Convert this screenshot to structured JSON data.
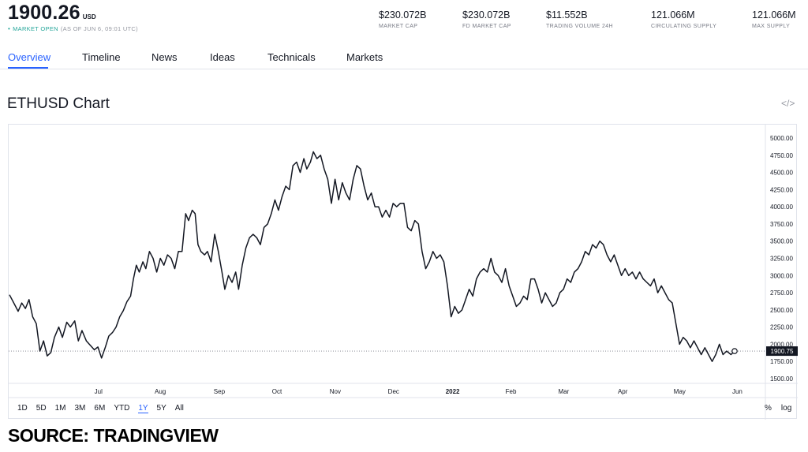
{
  "header": {
    "price": "1900.26",
    "currency": "USD",
    "status_dot": "•",
    "status": "MARKET OPEN",
    "as_of": "(AS OF JUN 6, 09:01 UTC)"
  },
  "stats": [
    {
      "value": "$230.072B",
      "label": "MARKET CAP"
    },
    {
      "value": "$230.072B",
      "label": "FD MARKET CAP"
    },
    {
      "value": "$11.552B",
      "label": "TRADING VOLUME 24H"
    },
    {
      "value": "121.066M",
      "label": "CIRCULATING SUPPLY"
    },
    {
      "value": "121.066M",
      "label": "MAX SUPPLY"
    }
  ],
  "tabs": [
    "Overview",
    "Timeline",
    "News",
    "Ideas",
    "Technicals",
    "Markets"
  ],
  "chart_title": "ETHUSD Chart",
  "embed_icon": "</>",
  "ranges": [
    "1D",
    "5D",
    "1M",
    "3M",
    "6M",
    "YTD",
    "1Y",
    "5Y",
    "All"
  ],
  "active_range": "1Y",
  "right_controls": [
    "%",
    "log"
  ],
  "source": "SOURCE: TRADINGVIEW",
  "colors": {
    "accent": "#2962ff",
    "market_open": "#26a69a",
    "line": "#131722",
    "last_price_label_bg": "#131722"
  },
  "chart_data": {
    "type": "line",
    "title": "ETHUSD Chart",
    "symbol": "ETHUSD",
    "xlabel": "",
    "ylabel": "",
    "ylim": [
      1500,
      5000
    ],
    "y_ticks": [
      "5000.00",
      "4750.00",
      "4500.00",
      "4250.00",
      "4000.00",
      "3750.00",
      "3500.00",
      "3250.00",
      "3000.00",
      "2750.00",
      "2500.00",
      "2250.00",
      "2000.00",
      "1750.00",
      "1500.00"
    ],
    "x_ticks": [
      {
        "label": "Jul",
        "t": 0.06
      },
      {
        "label": "Aug",
        "t": 0.149
      },
      {
        "label": "Sep",
        "t": 0.234
      },
      {
        "label": "Oct",
        "t": 0.317
      },
      {
        "label": "Nov",
        "t": 0.401
      },
      {
        "label": "Dec",
        "t": 0.485
      },
      {
        "label": "2022",
        "t": 0.57
      },
      {
        "label": "Feb",
        "t": 0.654
      },
      {
        "label": "Mar",
        "t": 0.73
      },
      {
        "label": "Apr",
        "t": 0.815
      },
      {
        "label": "May",
        "t": 0.897
      },
      {
        "label": "Jun",
        "t": 0.98
      }
    ],
    "last_price": "1900.75",
    "last_value": 1900.75,
    "series": [
      {
        "name": "ETHUSD",
        "points": [
          [
            0.0,
            2720
          ],
          [
            0.006,
            2600
          ],
          [
            0.012,
            2480
          ],
          [
            0.017,
            2600
          ],
          [
            0.022,
            2520
          ],
          [
            0.027,
            2650
          ],
          [
            0.032,
            2400
          ],
          [
            0.037,
            2300
          ],
          [
            0.042,
            1900
          ],
          [
            0.047,
            2050
          ],
          [
            0.052,
            1830
          ],
          [
            0.057,
            1880
          ],
          [
            0.062,
            2100
          ],
          [
            0.068,
            2250
          ],
          [
            0.073,
            2100
          ],
          [
            0.079,
            2320
          ],
          [
            0.084,
            2250
          ],
          [
            0.09,
            2340
          ],
          [
            0.095,
            2050
          ],
          [
            0.1,
            2200
          ],
          [
            0.106,
            2050
          ],
          [
            0.112,
            1980
          ],
          [
            0.117,
            1920
          ],
          [
            0.122,
            1960
          ],
          [
            0.127,
            1800
          ],
          [
            0.132,
            1950
          ],
          [
            0.137,
            2120
          ],
          [
            0.142,
            2170
          ],
          [
            0.147,
            2250
          ],
          [
            0.152,
            2400
          ],
          [
            0.157,
            2490
          ],
          [
            0.162,
            2620
          ],
          [
            0.167,
            2700
          ],
          [
            0.171,
            2950
          ],
          [
            0.175,
            3150
          ],
          [
            0.179,
            3050
          ],
          [
            0.184,
            3200
          ],
          [
            0.188,
            3100
          ],
          [
            0.193,
            3350
          ],
          [
            0.198,
            3250
          ],
          [
            0.203,
            3050
          ],
          [
            0.208,
            3250
          ],
          [
            0.213,
            3150
          ],
          [
            0.218,
            3300
          ],
          [
            0.223,
            3250
          ],
          [
            0.228,
            3100
          ],
          [
            0.233,
            3350
          ],
          [
            0.238,
            3350
          ],
          [
            0.243,
            3900
          ],
          [
            0.247,
            3800
          ],
          [
            0.252,
            3950
          ],
          [
            0.256,
            3900
          ],
          [
            0.26,
            3450
          ],
          [
            0.264,
            3350
          ],
          [
            0.269,
            3300
          ],
          [
            0.273,
            3350
          ],
          [
            0.278,
            3200
          ],
          [
            0.283,
            3600
          ],
          [
            0.288,
            3350
          ],
          [
            0.293,
            3050
          ],
          [
            0.297,
            2800
          ],
          [
            0.302,
            3000
          ],
          [
            0.307,
            2900
          ],
          [
            0.312,
            3050
          ],
          [
            0.316,
            2800
          ],
          [
            0.321,
            3150
          ],
          [
            0.326,
            3400
          ],
          [
            0.331,
            3550
          ],
          [
            0.336,
            3600
          ],
          [
            0.341,
            3550
          ],
          [
            0.346,
            3450
          ],
          [
            0.351,
            3700
          ],
          [
            0.356,
            3750
          ],
          [
            0.361,
            3900
          ],
          [
            0.366,
            4100
          ],
          [
            0.371,
            3950
          ],
          [
            0.376,
            4150
          ],
          [
            0.381,
            4300
          ],
          [
            0.386,
            4250
          ],
          [
            0.391,
            4600
          ],
          [
            0.396,
            4650
          ],
          [
            0.401,
            4500
          ],
          [
            0.406,
            4700
          ],
          [
            0.41,
            4550
          ],
          [
            0.415,
            4650
          ],
          [
            0.419,
            4800
          ],
          [
            0.424,
            4700
          ],
          [
            0.429,
            4750
          ],
          [
            0.434,
            4550
          ],
          [
            0.439,
            4400
          ],
          [
            0.444,
            4050
          ],
          [
            0.449,
            4400
          ],
          [
            0.454,
            4100
          ],
          [
            0.459,
            4350
          ],
          [
            0.464,
            4200
          ],
          [
            0.469,
            4100
          ],
          [
            0.474,
            4400
          ],
          [
            0.479,
            4600
          ],
          [
            0.484,
            4550
          ],
          [
            0.489,
            4300
          ],
          [
            0.494,
            4100
          ],
          [
            0.499,
            4200
          ],
          [
            0.504,
            4000
          ],
          [
            0.509,
            4000
          ],
          [
            0.514,
            3850
          ],
          [
            0.519,
            3950
          ],
          [
            0.524,
            3850
          ],
          [
            0.529,
            4050
          ],
          [
            0.534,
            4000
          ],
          [
            0.539,
            4050
          ],
          [
            0.544,
            4050
          ],
          [
            0.549,
            3700
          ],
          [
            0.554,
            3650
          ],
          [
            0.559,
            3800
          ],
          [
            0.564,
            3750
          ],
          [
            0.569,
            3350
          ],
          [
            0.574,
            3100
          ],
          [
            0.579,
            3200
          ],
          [
            0.584,
            3350
          ],
          [
            0.589,
            3250
          ],
          [
            0.594,
            3300
          ],
          [
            0.599,
            3200
          ],
          [
            0.604,
            2850
          ],
          [
            0.609,
            2400
          ],
          [
            0.614,
            2550
          ],
          [
            0.619,
            2450
          ],
          [
            0.624,
            2500
          ],
          [
            0.629,
            2650
          ],
          [
            0.634,
            2800
          ],
          [
            0.639,
            2700
          ],
          [
            0.644,
            2950
          ],
          [
            0.649,
            3050
          ],
          [
            0.654,
            3100
          ],
          [
            0.659,
            3050
          ],
          [
            0.664,
            3250
          ],
          [
            0.669,
            3050
          ],
          [
            0.674,
            3000
          ],
          [
            0.679,
            2900
          ],
          [
            0.684,
            3100
          ],
          [
            0.689,
            2850
          ],
          [
            0.694,
            2700
          ],
          [
            0.699,
            2550
          ],
          [
            0.704,
            2600
          ],
          [
            0.709,
            2700
          ],
          [
            0.714,
            2650
          ],
          [
            0.719,
            2950
          ],
          [
            0.724,
            2950
          ],
          [
            0.729,
            2800
          ],
          [
            0.734,
            2600
          ],
          [
            0.739,
            2750
          ],
          [
            0.744,
            2650
          ],
          [
            0.749,
            2550
          ],
          [
            0.754,
            2600
          ],
          [
            0.759,
            2750
          ],
          [
            0.764,
            2800
          ],
          [
            0.769,
            2950
          ],
          [
            0.774,
            2900
          ],
          [
            0.779,
            3050
          ],
          [
            0.784,
            3100
          ],
          [
            0.789,
            3200
          ],
          [
            0.794,
            3350
          ],
          [
            0.799,
            3300
          ],
          [
            0.804,
            3450
          ],
          [
            0.809,
            3400
          ],
          [
            0.814,
            3500
          ],
          [
            0.819,
            3450
          ],
          [
            0.824,
            3300
          ],
          [
            0.829,
            3200
          ],
          [
            0.834,
            3300
          ],
          [
            0.839,
            3150
          ],
          [
            0.844,
            3000
          ],
          [
            0.849,
            3100
          ],
          [
            0.854,
            3000
          ],
          [
            0.859,
            3050
          ],
          [
            0.864,
            2950
          ],
          [
            0.869,
            3050
          ],
          [
            0.874,
            2950
          ],
          [
            0.879,
            2900
          ],
          [
            0.884,
            2850
          ],
          [
            0.889,
            2950
          ],
          [
            0.894,
            2750
          ],
          [
            0.899,
            2850
          ],
          [
            0.904,
            2750
          ],
          [
            0.909,
            2650
          ],
          [
            0.914,
            2600
          ],
          [
            0.919,
            2300
          ],
          [
            0.924,
            2000
          ],
          [
            0.929,
            2100
          ],
          [
            0.934,
            2050
          ],
          [
            0.939,
            1950
          ],
          [
            0.944,
            2050
          ],
          [
            0.949,
            1950
          ],
          [
            0.954,
            1850
          ],
          [
            0.959,
            1950
          ],
          [
            0.964,
            1850
          ],
          [
            0.969,
            1750
          ],
          [
            0.974,
            1850
          ],
          [
            0.979,
            2000
          ],
          [
            0.984,
            1850
          ],
          [
            0.989,
            1900
          ],
          [
            0.995,
            1850
          ],
          [
            1.0,
            1900.75
          ]
        ]
      }
    ]
  }
}
